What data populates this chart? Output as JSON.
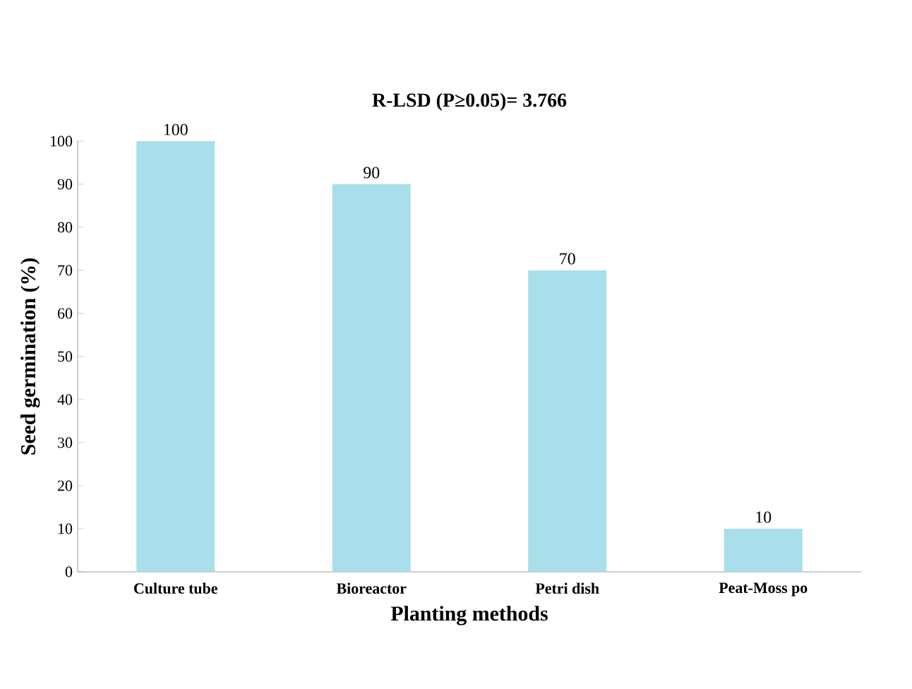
{
  "chart_data": {
    "type": "bar",
    "title": "R-LSD (P≥0.05)= 3.766",
    "xlabel": "Planting methods",
    "ylabel": "Seed germination (%)",
    "categories": [
      "Culture tube",
      "Bioreactor",
      "Petri dish",
      "Peat-Moss po"
    ],
    "values": [
      100,
      90,
      70,
      10
    ],
    "color": "#a9dfea",
    "ylim": [
      0,
      100
    ],
    "yticks": [
      0,
      10,
      20,
      30,
      40,
      50,
      60,
      70,
      80,
      90,
      100
    ],
    "data_labels": true
  }
}
